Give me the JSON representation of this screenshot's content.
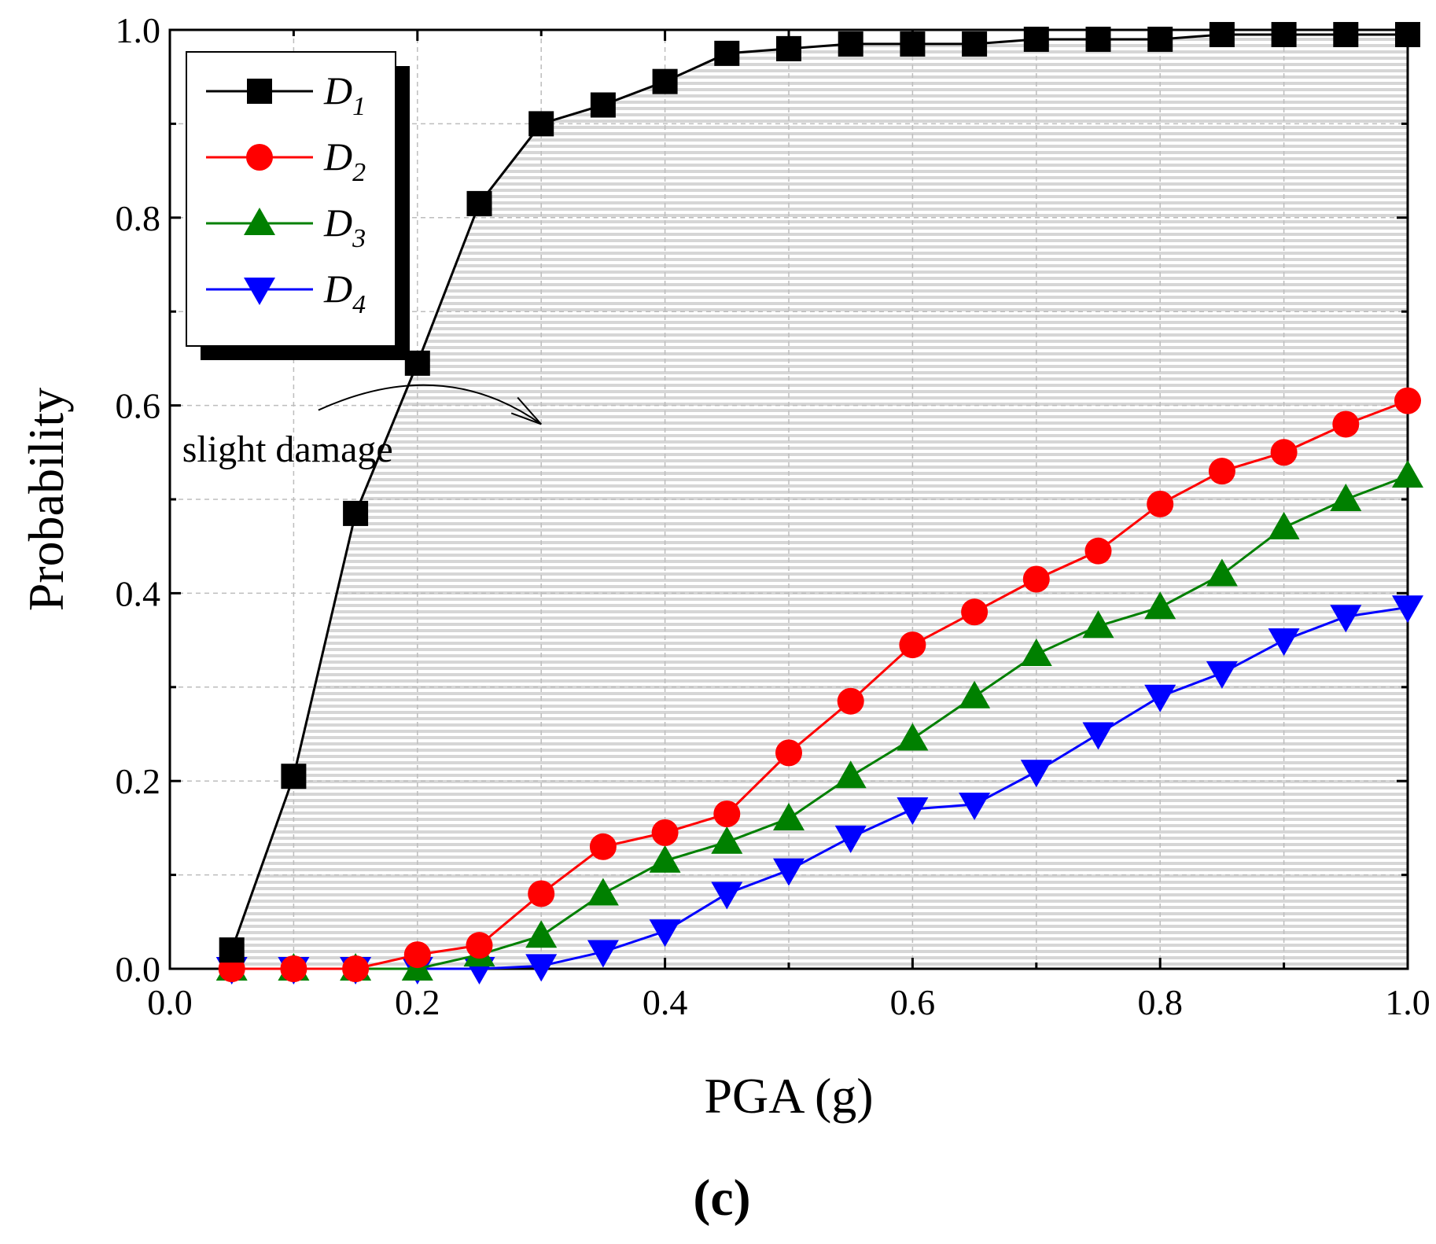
{
  "chart_data": {
    "type": "line",
    "title": "",
    "xlabel": "PGA (g)",
    "ylabel": "Probability",
    "xlim": [
      0.0,
      1.0
    ],
    "ylim": [
      0.0,
      1.0
    ],
    "x_ticks": [
      "0.0",
      "0.2",
      "0.4",
      "0.6",
      "0.8",
      "1.0"
    ],
    "y_ticks": [
      "0.0",
      "0.2",
      "0.4",
      "0.6",
      "0.8",
      "1.0"
    ],
    "grid": true,
    "legend_position": "top-left",
    "x": [
      0.05,
      0.1,
      0.15,
      0.2,
      0.25,
      0.3,
      0.35,
      0.4,
      0.45,
      0.5,
      0.55,
      0.6,
      0.65,
      0.7,
      0.75,
      0.8,
      0.85,
      0.9,
      0.95,
      1.0
    ],
    "series": [
      {
        "name": "D",
        "sub": "1",
        "color": "#000000",
        "marker": "square",
        "values": [
          0.02,
          0.205,
          0.485,
          0.645,
          0.815,
          0.9,
          0.92,
          0.945,
          0.975,
          0.98,
          0.985,
          0.985,
          0.985,
          0.99,
          0.99,
          0.99,
          0.995,
          0.995,
          0.995,
          0.995
        ]
      },
      {
        "name": "D",
        "sub": "2",
        "color": "#ff0000",
        "marker": "circle",
        "values": [
          0.0,
          0.0,
          0.0,
          0.015,
          0.025,
          0.08,
          0.13,
          0.145,
          0.165,
          0.23,
          0.285,
          0.345,
          0.38,
          0.415,
          0.445,
          0.495,
          0.53,
          0.55,
          0.58,
          0.605
        ]
      },
      {
        "name": "D",
        "sub": "3",
        "color": "#008000",
        "marker": "triangle-up",
        "values": [
          0.0,
          0.0,
          0.0,
          0.0,
          0.015,
          0.035,
          0.08,
          0.115,
          0.135,
          0.16,
          0.205,
          0.245,
          0.29,
          0.335,
          0.365,
          0.385,
          0.42,
          0.47,
          0.5,
          0.525
        ]
      },
      {
        "name": "D",
        "sub": "4",
        "color": "#0000ff",
        "marker": "triangle-down",
        "values": [
          0.0,
          0.0,
          0.0,
          0.0,
          0.0,
          0.003,
          0.018,
          0.04,
          0.08,
          0.105,
          0.14,
          0.17,
          0.175,
          0.21,
          0.25,
          0.29,
          0.315,
          0.35,
          0.375,
          0.385
        ]
      }
    ],
    "annotations": [
      {
        "text": "slight damage",
        "x": 0.01,
        "y": 0.54
      }
    ],
    "arrow": {
      "from": [
        0.12,
        0.595
      ],
      "ctrl": [
        0.22,
        0.655
      ],
      "to": [
        0.3,
        0.58
      ]
    },
    "shaded_region": {
      "between_series": "D1",
      "and": "x-axis",
      "pattern": "horizontal-lines"
    },
    "panel_label": "(c)"
  }
}
